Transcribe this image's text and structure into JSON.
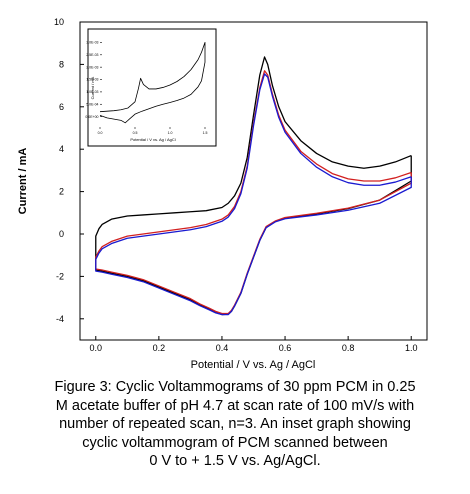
{
  "chart_data": [
    {
      "type": "line",
      "xlabel": "Potential / V vs. Ag / AgCl",
      "ylabel": "Current / mA",
      "xlim": [
        -0.05,
        1.05
      ],
      "ylim": [
        -5,
        10
      ],
      "xticks": [
        0.0,
        0.2,
        0.4,
        0.6,
        0.8,
        1.0
      ],
      "xtick_labels": [
        "0.0",
        "0.2",
        "0.4",
        "0.6",
        "0.8",
        "1.0"
      ],
      "yticks": [
        -4,
        -2,
        0,
        2,
        4,
        6,
        8,
        10
      ],
      "ytick_labels": [
        "-4",
        "-2",
        "0",
        "2",
        "4",
        "6",
        "8",
        "10"
      ],
      "colors": {
        "scan_1": "#000000",
        "scan_2": "#d22020",
        "scan_3": "#1a1ad0"
      },
      "series": [
        {
          "color": "#000000",
          "x": [
            1.0,
            0.95,
            0.9,
            0.85,
            0.8,
            0.75,
            0.7,
            0.65,
            0.6,
            0.58,
            0.56,
            0.545,
            0.535,
            0.52,
            0.5,
            0.48,
            0.46,
            0.44,
            0.42,
            0.4,
            0.35,
            0.3,
            0.25,
            0.2,
            0.15,
            0.1,
            0.05,
            0.02,
            0.01,
            0.0,
            0.0,
            0.0,
            0.02,
            0.05,
            0.1,
            0.15,
            0.2,
            0.25,
            0.3,
            0.33,
            0.36,
            0.38,
            0.4,
            0.42,
            0.43,
            0.44,
            0.46,
            0.48,
            0.5,
            0.52,
            0.54,
            0.57,
            0.6,
            0.7,
            0.8,
            0.9,
            1.0,
            1.0
          ],
          "y": [
            3.7,
            3.4,
            3.2,
            3.1,
            3.2,
            3.4,
            3.8,
            4.4,
            5.3,
            6.0,
            7.0,
            8.0,
            8.35,
            7.5,
            5.6,
            3.6,
            2.4,
            1.8,
            1.45,
            1.25,
            1.1,
            1.05,
            1.0,
            0.95,
            0.9,
            0.85,
            0.7,
            0.45,
            0.25,
            -0.1,
            -0.5,
            -1.7,
            -1.75,
            -1.85,
            -2.0,
            -2.2,
            -2.5,
            -2.8,
            -3.1,
            -3.35,
            -3.55,
            -3.7,
            -3.8,
            -3.78,
            -3.65,
            -3.4,
            -2.8,
            -1.9,
            -1.1,
            -0.3,
            0.3,
            0.6,
            0.75,
            0.95,
            1.2,
            1.6,
            2.5,
            3.7
          ]
        },
        {
          "color": "#d22020",
          "x": [
            1.0,
            0.95,
            0.9,
            0.85,
            0.8,
            0.75,
            0.7,
            0.65,
            0.6,
            0.58,
            0.56,
            0.545,
            0.535,
            0.52,
            0.5,
            0.48,
            0.46,
            0.44,
            0.42,
            0.4,
            0.35,
            0.3,
            0.25,
            0.2,
            0.15,
            0.1,
            0.05,
            0.02,
            0.01,
            0.0,
            0.0,
            0.02,
            0.05,
            0.1,
            0.15,
            0.2,
            0.25,
            0.3,
            0.33,
            0.36,
            0.38,
            0.4,
            0.42,
            0.43,
            0.44,
            0.46,
            0.48,
            0.5,
            0.52,
            0.54,
            0.57,
            0.6,
            0.7,
            0.8,
            0.9,
            1.0,
            1.0
          ],
          "y": [
            2.9,
            2.65,
            2.5,
            2.5,
            2.6,
            2.85,
            3.3,
            3.9,
            4.9,
            5.6,
            6.6,
            7.5,
            7.7,
            6.9,
            5.2,
            3.2,
            2.0,
            1.3,
            0.9,
            0.7,
            0.45,
            0.3,
            0.2,
            0.1,
            0.0,
            -0.1,
            -0.35,
            -0.6,
            -0.8,
            -1.1,
            -1.65,
            -1.7,
            -1.8,
            -1.95,
            -2.15,
            -2.45,
            -2.75,
            -3.05,
            -3.3,
            -3.5,
            -3.65,
            -3.75,
            -3.75,
            -3.6,
            -3.35,
            -2.75,
            -1.85,
            -1.05,
            -0.25,
            0.35,
            0.62,
            0.78,
            0.98,
            1.22,
            1.6,
            2.4,
            2.9
          ]
        },
        {
          "color": "#1a1ad0",
          "x": [
            1.0,
            0.95,
            0.9,
            0.85,
            0.8,
            0.75,
            0.7,
            0.65,
            0.6,
            0.58,
            0.56,
            0.545,
            0.535,
            0.52,
            0.5,
            0.48,
            0.46,
            0.44,
            0.42,
            0.4,
            0.35,
            0.3,
            0.25,
            0.2,
            0.15,
            0.1,
            0.05,
            0.02,
            0.01,
            0.0,
            0.0,
            0.02,
            0.05,
            0.1,
            0.15,
            0.2,
            0.25,
            0.3,
            0.33,
            0.36,
            0.38,
            0.4,
            0.42,
            0.43,
            0.44,
            0.46,
            0.48,
            0.5,
            0.52,
            0.54,
            0.57,
            0.6,
            0.7,
            0.8,
            0.9,
            1.0,
            1.0
          ],
          "y": [
            2.7,
            2.45,
            2.3,
            2.3,
            2.42,
            2.7,
            3.15,
            3.8,
            4.8,
            5.5,
            6.5,
            7.4,
            7.55,
            6.8,
            5.1,
            3.1,
            1.9,
            1.2,
            0.8,
            0.6,
            0.35,
            0.2,
            0.1,
            0.0,
            -0.1,
            -0.2,
            -0.45,
            -0.7,
            -0.9,
            -1.2,
            -1.75,
            -1.8,
            -1.9,
            -2.05,
            -2.25,
            -2.55,
            -2.85,
            -3.15,
            -3.38,
            -3.58,
            -3.72,
            -3.8,
            -3.8,
            -3.65,
            -3.4,
            -2.8,
            -1.9,
            -1.1,
            -0.3,
            0.3,
            0.58,
            0.72,
            0.9,
            1.12,
            1.45,
            2.2,
            2.7
          ]
        }
      ]
    },
    {
      "type": "line",
      "xlabel": "Potential / V vs. Ag / AgCl",
      "ylabel": "Current / mA",
      "xlim": [
        0,
        1.5
      ],
      "xticks": [
        0.0,
        0.5,
        1.0,
        1.5
      ],
      "xtick_labels": [
        "0.0",
        "0.5",
        "1.0",
        "1.5"
      ],
      "ytick_labels": [
        "0.0E+00",
        "5.0E-04",
        "1.0E-03",
        "1.5E-03",
        "2.0E-03",
        "2.5E-03",
        "3.0E-03"
      ],
      "yticks": [
        0,
        0.0005,
        0.001,
        0.0015,
        0.002,
        0.0025,
        0.003
      ],
      "ylim": [
        -0.0005,
        0.0033
      ],
      "series": [
        {
          "color": "#000000",
          "x": [
            0.0,
            0.1,
            0.2,
            0.3,
            0.4,
            0.5,
            0.55,
            0.58,
            0.62,
            0.7,
            0.8,
            0.9,
            1.0,
            1.1,
            1.2,
            1.3,
            1.4,
            1.45,
            1.5,
            1.5,
            1.45,
            1.4,
            1.3,
            1.2,
            1.1,
            1.0,
            0.9,
            0.8,
            0.7,
            0.6,
            0.5,
            0.42,
            0.36,
            0.3,
            0.2,
            0.1,
            0.0
          ],
          "y": [
            0.0002,
            0.00022,
            0.00024,
            0.00028,
            0.00035,
            0.0006,
            0.00115,
            0.00155,
            0.0013,
            0.00112,
            0.00112,
            0.00118,
            0.00128,
            0.00142,
            0.00162,
            0.0019,
            0.0023,
            0.0026,
            0.003,
            0.0022,
            0.00145,
            0.0012,
            0.0009,
            0.00075,
            0.00065,
            0.00057,
            0.0005,
            0.00042,
            0.00032,
            0.00022,
            0.0001,
            -0.0001,
            -0.00025,
            -0.00015,
            -0.0001,
            -5e-05,
            5e-05
          ]
        }
      ]
    }
  ],
  "caption": {
    "lines": [
      "Figure 3: Cyclic Voltammograms  of 30 ppm  PCM in 0.25",
      "M acetate buffer of pH 4.7 at scan rate of 100  mV/s with",
      "number of repeated scan, n=3. An inset graph showing",
      "cyclic voltammogram of PCM scanned between",
      "0 V to + 1.5 V vs. Ag/AgCl."
    ]
  }
}
